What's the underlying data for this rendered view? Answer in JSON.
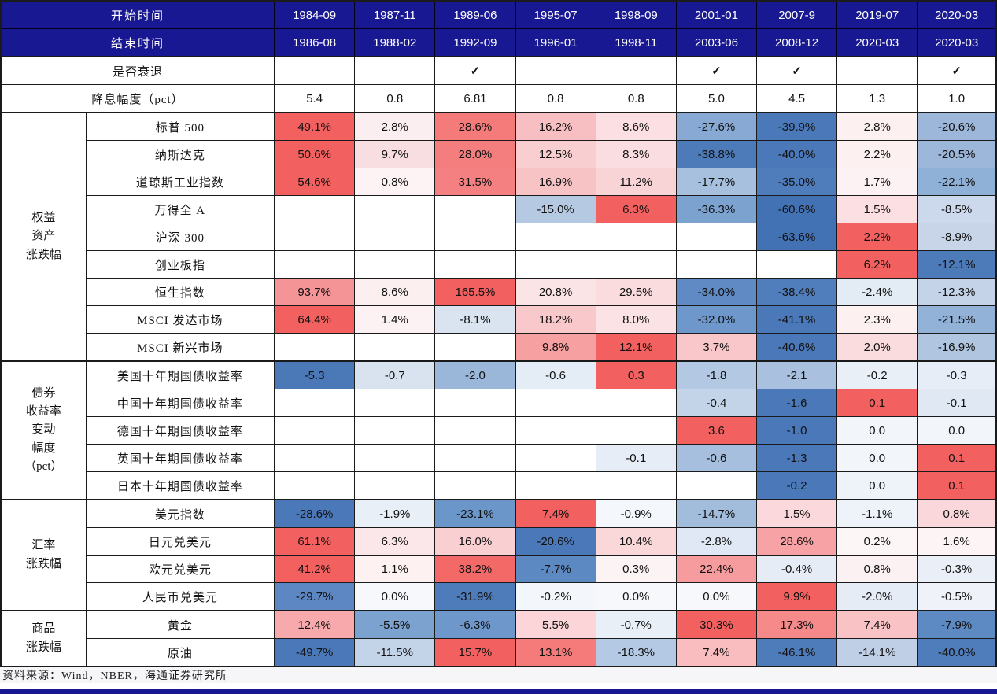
{
  "colors": {
    "header_bg": "#181892",
    "footer_bar_bg": "#181892",
    "strong_red": "#f2615f",
    "strong_blue": "#4a78b8",
    "source_strip_bg": "#f6f6f8",
    "border": "#1a1a1a"
  },
  "footer": {
    "source": "资料来源：Wind，NBER，海通证券研究所"
  },
  "chart_data": {
    "type": "table",
    "header": {
      "start_row_label": "开始时间",
      "end_row_label": "结束时间",
      "recession_row_label": "是否衰退",
      "rate_cut_row_label": "降息幅度（pct）",
      "starts": [
        "1984-09",
        "1987-11",
        "1989-06",
        "1995-07",
        "1998-09",
        "2001-01",
        "2007-9",
        "2019-07",
        "2020-03"
      ],
      "ends": [
        "1986-08",
        "1988-02",
        "1992-09",
        "1996-01",
        "1998-11",
        "2003-06",
        "2008-12",
        "2020-03",
        "2020-03"
      ],
      "recession": [
        "",
        "",
        "✓",
        "",
        "",
        "✓",
        "✓",
        "",
        "✓"
      ],
      "rate_cut": [
        "5.4",
        "0.8",
        "6.81",
        "0.8",
        "0.8",
        "5.0",
        "4.5",
        "1.3",
        "1.0"
      ]
    },
    "groups": [
      {
        "name_lines": [
          "权益",
          "资产",
          "涨跌幅"
        ],
        "rows": [
          {
            "label": "标普 500",
            "cells": [
              [
                "49.1%",
                "#f2615f"
              ],
              [
                "2.8%",
                "#fbeef0"
              ],
              [
                "28.6%",
                "#f47b7a"
              ],
              [
                "16.2%",
                "#f8bfc2"
              ],
              [
                "8.6%",
                "#fbdfe2"
              ],
              [
                "-27.6%",
                "#87a9d3"
              ],
              [
                "-39.9%",
                "#4a78b8"
              ],
              [
                "2.8%",
                "#fcf0f1"
              ],
              [
                "-20.6%",
                "#9cb7da"
              ]
            ]
          },
          {
            "label": "纳斯达克",
            "cells": [
              [
                "50.6%",
                "#f2615f"
              ],
              [
                "9.7%",
                "#f9dee1"
              ],
              [
                "28.0%",
                "#f47e7d"
              ],
              [
                "12.5%",
                "#f9ced1"
              ],
              [
                "8.3%",
                "#fadde0"
              ],
              [
                "-38.8%",
                "#4d7ab9"
              ],
              [
                "-40.0%",
                "#4a78b8"
              ],
              [
                "2.2%",
                "#fcf0f1"
              ],
              [
                "-20.5%",
                "#9cb7da"
              ]
            ]
          },
          {
            "label": "道琼斯工业指数",
            "cells": [
              [
                "54.6%",
                "#f2615f"
              ],
              [
                "0.8%",
                "#fdf3f4"
              ],
              [
                "31.5%",
                "#f58082"
              ],
              [
                "16.9%",
                "#f8c3c5"
              ],
              [
                "11.2%",
                "#f9d4d7"
              ],
              [
                "-17.7%",
                "#a6c0de"
              ],
              [
                "-35.0%",
                "#4f7cba"
              ],
              [
                "1.7%",
                "#fdf2f3"
              ],
              [
                "-22.1%",
                "#8fb0d7"
              ]
            ]
          },
          {
            "label": "万得全 A",
            "cells": [
              [
                "",
                ""
              ],
              [
                "",
                ""
              ],
              [
                "",
                ""
              ],
              [
                "-15.0%",
                "#b5c9e3"
              ],
              [
                "6.3%",
                "#f2615f"
              ],
              [
                "-36.3%",
                "#7ca2d0"
              ],
              [
                "-60.6%",
                "#4372b4"
              ],
              [
                "1.5%",
                "#fbdfe2"
              ],
              [
                "-8.5%",
                "#ccd8eb"
              ]
            ]
          },
          {
            "label": "沪深 300",
            "cells": [
              [
                "",
                ""
              ],
              [
                "",
                ""
              ],
              [
                "",
                ""
              ],
              [
                "",
                ""
              ],
              [
                "",
                ""
              ],
              [
                "",
                ""
              ],
              [
                "-63.6%",
                "#4372b4"
              ],
              [
                "2.2%",
                "#f2615f"
              ],
              [
                "-8.9%",
                "#c8d5e9"
              ]
            ]
          },
          {
            "label": "创业板指",
            "cells": [
              [
                "",
                ""
              ],
              [
                "",
                ""
              ],
              [
                "",
                ""
              ],
              [
                "",
                ""
              ],
              [
                "",
                ""
              ],
              [
                "",
                ""
              ],
              [
                "",
                ""
              ],
              [
                "6.2%",
                "#f2615f"
              ],
              [
                "-12.1%",
                "#4d7ab9"
              ]
            ]
          },
          {
            "label": "恒生指数",
            "cells": [
              [
                "93.7%",
                "#f59496"
              ],
              [
                "8.6%",
                "#fbeff0"
              ],
              [
                "165.5%",
                "#f2615f"
              ],
              [
                "20.8%",
                "#fbe4e6"
              ],
              [
                "29.5%",
                "#fadbde"
              ],
              [
                "-34.0%",
                "#5f8ac3"
              ],
              [
                "-38.4%",
                "#507dbb"
              ],
              [
                "-2.4%",
                "#e3ebf5"
              ],
              [
                "-12.3%",
                "#c4d3e8"
              ]
            ]
          },
          {
            "label": "MSCI 发达市场",
            "cells": [
              [
                "64.4%",
                "#f2615f"
              ],
              [
                "1.4%",
                "#fdf2f3"
              ],
              [
                "-8.1%",
                "#dae4f1"
              ],
              [
                "18.2%",
                "#f8c8cb"
              ],
              [
                "8.0%",
                "#fbe2e4"
              ],
              [
                "-32.0%",
                "#6e97cb"
              ],
              [
                "-41.1%",
                "#4a78b8"
              ],
              [
                "2.3%",
                "#fdf0f1"
              ],
              [
                "-21.5%",
                "#93b2d8"
              ]
            ]
          },
          {
            "label": "MSCI 新兴市场",
            "cells": [
              [
                "",
                ""
              ],
              [
                "",
                ""
              ],
              [
                "",
                ""
              ],
              [
                "9.8%",
                "#f7a0a2"
              ],
              [
                "12.1%",
                "#f2615f"
              ],
              [
                "3.7%",
                "#f9c6c9"
              ],
              [
                "-40.6%",
                "#4a78b8"
              ],
              [
                "2.0%",
                "#fadcdf"
              ],
              [
                "-16.9%",
                "#b0c5e0"
              ]
            ]
          }
        ]
      },
      {
        "name_lines": [
          "债券",
          "收益率",
          "变动",
          "幅度",
          "（pct）"
        ],
        "rows": [
          {
            "label": "美国十年期国债收益率",
            "cells": [
              [
                "-5.3",
                "#4b79b8"
              ],
              [
                "-0.7",
                "#d9e3f0"
              ],
              [
                "-2.0",
                "#9ab7da"
              ],
              [
                "-0.6",
                "#e4ecf6"
              ],
              [
                "0.3",
                "#f2615f"
              ],
              [
                "-1.8",
                "#b3c8e2"
              ],
              [
                "-2.1",
                "#a9c0de"
              ],
              [
                "-0.2",
                "#e9eff7"
              ],
              [
                "-0.3",
                "#e6edf6"
              ]
            ]
          },
          {
            "label": "中国十年期国债收益率",
            "cells": [
              [
                "",
                ""
              ],
              [
                "",
                ""
              ],
              [
                "",
                ""
              ],
              [
                "",
                ""
              ],
              [
                "",
                ""
              ],
              [
                "-0.4",
                "#c3d3e8"
              ],
              [
                "-1.6",
                "#4a78b8"
              ],
              [
                "0.1",
                "#f2615f"
              ],
              [
                "-0.1",
                "#dfe8f3"
              ]
            ]
          },
          {
            "label": "德国十年期国债收益率",
            "cells": [
              [
                "",
                ""
              ],
              [
                "",
                ""
              ],
              [
                "",
                ""
              ],
              [
                "",
                ""
              ],
              [
                "",
                ""
              ],
              [
                "3.6",
                "#f2615f"
              ],
              [
                "-1.0",
                "#4a78b8"
              ],
              [
                "0.0",
                "#f2f5fa"
              ],
              [
                "0.0",
                "#f2f5fa"
              ]
            ]
          },
          {
            "label": "英国十年期国债收益率",
            "cells": [
              [
                "",
                ""
              ],
              [
                "",
                ""
              ],
              [
                "",
                ""
              ],
              [
                "",
                ""
              ],
              [
                "-0.1",
                "#e7edf6"
              ],
              [
                "-0.6",
                "#a6bfde"
              ],
              [
                "-1.3",
                "#4a78b8"
              ],
              [
                "0.0",
                "#f2f5fa"
              ],
              [
                "0.1",
                "#f2615f"
              ]
            ]
          },
          {
            "label": "日本十年期国债收益率",
            "cells": [
              [
                "",
                ""
              ],
              [
                "",
                ""
              ],
              [
                "",
                ""
              ],
              [
                "",
                ""
              ],
              [
                "",
                ""
              ],
              [
                "",
                ""
              ],
              [
                "-0.2",
                "#4a78b8"
              ],
              [
                "0.0",
                "#eef3f9"
              ],
              [
                "0.1",
                "#f2615f"
              ]
            ]
          }
        ]
      },
      {
        "name_lines": [
          "汇率",
          "涨跌幅"
        ],
        "rows": [
          {
            "label": "美元指数",
            "cells": [
              [
                "-28.6%",
                "#4a78b8"
              ],
              [
                "-1.9%",
                "#e9eff7"
              ],
              [
                "-23.1%",
                "#6b96ca"
              ],
              [
                "7.4%",
                "#f2615f"
              ],
              [
                "-0.9%",
                "#f4f7fb"
              ],
              [
                "-14.7%",
                "#a2bcdc"
              ],
              [
                "1.5%",
                "#fad8db"
              ],
              [
                "-1.1%",
                "#eef2f9"
              ],
              [
                "0.8%",
                "#fad7da"
              ]
            ]
          },
          {
            "label": "日元兑美元",
            "cells": [
              [
                "61.1%",
                "#f2615f"
              ],
              [
                "6.3%",
                "#fbe7e9"
              ],
              [
                "16.0%",
                "#f9cfd2"
              ],
              [
                "-20.6%",
                "#4a78b8"
              ],
              [
                "10.4%",
                "#fad8da"
              ],
              [
                "-2.8%",
                "#dfe8f4"
              ],
              [
                "28.6%",
                "#f7a3a5"
              ],
              [
                "0.2%",
                "#fdf6f7"
              ],
              [
                "1.6%",
                "#fdf4f5"
              ]
            ]
          },
          {
            "label": "欧元兑美元",
            "cells": [
              [
                "41.2%",
                "#f2615f"
              ],
              [
                "1.1%",
                "#fdf1f2"
              ],
              [
                "38.2%",
                "#f36967"
              ],
              [
                "-7.7%",
                "#5d89c3"
              ],
              [
                "0.3%",
                "#fcf3f4"
              ],
              [
                "22.4%",
                "#f79c9e"
              ],
              [
                "-0.4%",
                "#e6ecf6"
              ],
              [
                "0.8%",
                "#fcf1f2"
              ],
              [
                "-0.3%",
                "#e9eef7"
              ]
            ]
          },
          {
            "label": "人民币兑美元",
            "cells": [
              [
                "-29.7%",
                "#5c87c2"
              ],
              [
                "0.0%",
                "#f6f8fb"
              ],
              [
                "-31.9%",
                "#4e7cba"
              ],
              [
                "-0.2%",
                "#f3f6fa"
              ],
              [
                "0.0%",
                "#f6f8fb"
              ],
              [
                "0.0%",
                "#f6f8fb"
              ],
              [
                "9.9%",
                "#f2615f"
              ],
              [
                "-2.0%",
                "#e5ecf5"
              ],
              [
                "-0.5%",
                "#eff3f9"
              ]
            ]
          }
        ]
      },
      {
        "name_lines": [
          "商品",
          "涨跌幅"
        ],
        "rows": [
          {
            "label": "黄金",
            "cells": [
              [
                "12.4%",
                "#f7a9ac"
              ],
              [
                "-5.5%",
                "#7ca2d0"
              ],
              [
                "-6.3%",
                "#6e97cb"
              ],
              [
                "5.5%",
                "#fbd5d8"
              ],
              [
                "-0.7%",
                "#e9eff7"
              ],
              [
                "30.3%",
                "#f2615f"
              ],
              [
                "17.3%",
                "#f68a8b"
              ],
              [
                "7.4%",
                "#f9c3c6"
              ],
              [
                "-7.9%",
                "#5e8ac3"
              ]
            ]
          },
          {
            "label": "原油",
            "cells": [
              [
                "-49.7%",
                "#4a78b8"
              ],
              [
                "-11.5%",
                "#c3d3e8"
              ],
              [
                "15.7%",
                "#f2615f"
              ],
              [
                "13.1%",
                "#f47b7a"
              ],
              [
                "-18.3%",
                "#b4c9e3"
              ],
              [
                "7.4%",
                "#f9bdbf"
              ],
              [
                "-46.1%",
                "#4e7bb9"
              ],
              [
                "-14.1%",
                "#bfd0e6"
              ],
              [
                "-40.0%",
                "#4f7cba"
              ]
            ]
          }
        ]
      }
    ]
  }
}
